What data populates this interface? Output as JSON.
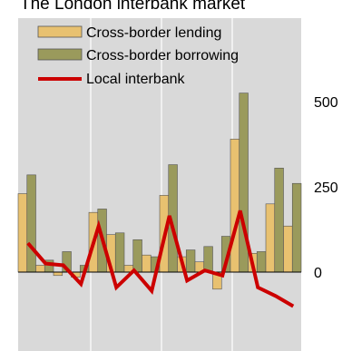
{
  "chart_data": {
    "type": "bar",
    "title": "The London interbank market",
    "xlabel": "",
    "ylabel": "",
    "ylim": [
      -120,
      600
    ],
    "y_ticks": [
      0,
      250,
      500
    ],
    "y_tick_labels": [
      "0",
      "250",
      "500"
    ],
    "grid": true,
    "legend_position": "top-left",
    "series": [
      {
        "name": "Cross-border lending",
        "type": "bar",
        "color": "#e8c170",
        "values": [
          230,
          20,
          -10,
          -15,
          175,
          110,
          20,
          50,
          225,
          45,
          30,
          -50,
          390,
          55,
          200,
          135
        ]
      },
      {
        "name": "Cross-border borrowing",
        "type": "bar",
        "color": "#9a9a5c",
        "values": [
          285,
          35,
          60,
          20,
          185,
          115,
          95,
          45,
          315,
          65,
          75,
          105,
          525,
          60,
          305,
          260
        ]
      },
      {
        "name": "Local interbank",
        "type": "line",
        "color": "#cc0000",
        "values": [
          85,
          25,
          20,
          -35,
          135,
          -45,
          5,
          -55,
          165,
          -25,
          5,
          -10,
          180,
          -45,
          -70,
          -100
        ]
      }
    ]
  }
}
